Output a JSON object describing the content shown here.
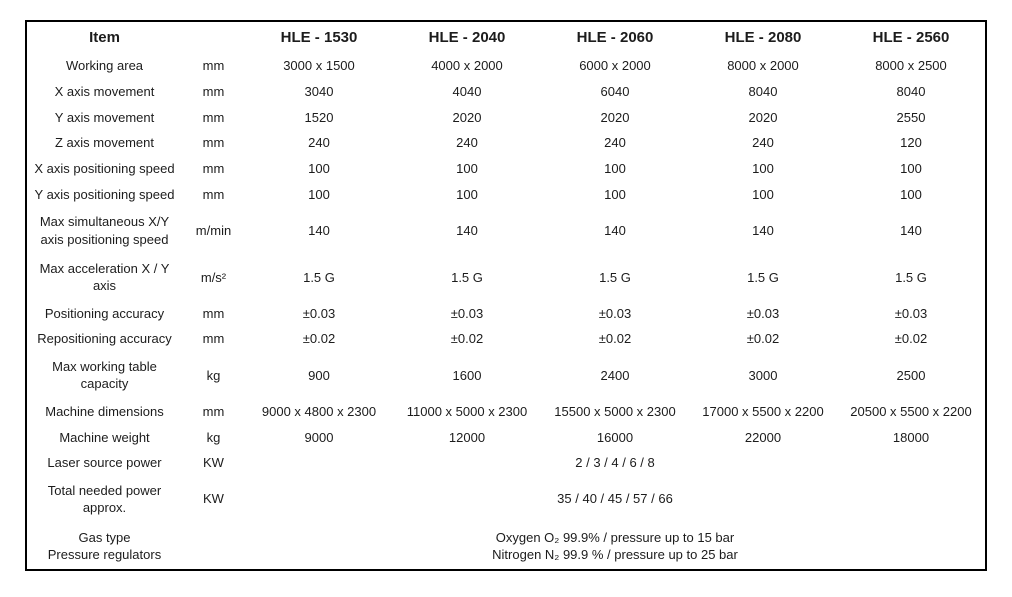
{
  "table": {
    "header_item": "Item",
    "header_unit": "",
    "models": [
      "HLE - 1530",
      "HLE - 2040",
      "HLE - 2060",
      "HLE - 2080",
      "HLE - 2560"
    ],
    "rows": [
      {
        "item": "Working area",
        "unit": "mm",
        "values": [
          "3000 x 1500",
          "4000 x 2000",
          "6000 x 2000",
          "8000 x 2000",
          "8000 x 2500"
        ]
      },
      {
        "item": "X axis movement",
        "unit": "mm",
        "values": [
          "3040",
          "4040",
          "6040",
          "8040",
          "8040"
        ]
      },
      {
        "item": "Y axis movement",
        "unit": "mm",
        "values": [
          "1520",
          "2020",
          "2020",
          "2020",
          "2550"
        ]
      },
      {
        "item": "Z axis movement",
        "unit": "mm",
        "values": [
          "240",
          "240",
          "240",
          "240",
          "120"
        ]
      },
      {
        "item": "X axis positioning speed",
        "unit": "mm",
        "values": [
          "100",
          "100",
          "100",
          "100",
          "100"
        ]
      },
      {
        "item": "Y axis positioning speed",
        "unit": "mm",
        "values": [
          "100",
          "100",
          "100",
          "100",
          "100"
        ]
      },
      {
        "item": "Max simultaneous X/Y axis positioning speed",
        "unit": "m/min",
        "values": [
          "140",
          "140",
          "140",
          "140",
          "140"
        ]
      },
      {
        "item": "Max acceleration X / Y axis",
        "unit": "m/s²",
        "values": [
          "1.5 G",
          "1.5 G",
          "1.5 G",
          "1.5 G",
          "1.5 G"
        ]
      },
      {
        "item": "Positioning accuracy",
        "unit": "mm",
        "values": [
          "±0.03",
          "±0.03",
          "±0.03",
          "±0.03",
          "±0.03"
        ]
      },
      {
        "item": "Repositioning accuracy",
        "unit": "mm",
        "values": [
          "±0.02",
          "±0.02",
          "±0.02",
          "±0.02",
          "±0.02"
        ]
      },
      {
        "item": "Max working table capacity",
        "unit": "kg",
        "values": [
          "900",
          "1600",
          "2400",
          "3000",
          "2500"
        ]
      },
      {
        "item": "Machine dimensions",
        "unit": "mm",
        "values": [
          "9000 x 4800 x 2300",
          "11000 x 5000 x 2300",
          "15500 x 5000 x 2300",
          "17000 x 5500 x 2200",
          "20500 x 5500 x 2200"
        ]
      },
      {
        "item": "Machine weight",
        "unit": "kg",
        "values": [
          "9000",
          "12000",
          "16000",
          "22000",
          "18000"
        ]
      },
      {
        "item": "Laser source power",
        "unit": "KW",
        "span": "2 / 3 / 4 / 6 / 8"
      },
      {
        "item": "Total needed power approx.",
        "unit": "KW",
        "span": "35 / 40 / 45 / 57 / 66"
      },
      {
        "item": "Gas type\nPressure regulators",
        "unit": "",
        "span": "Oxygen O₂ 99.9% / pressure up to 15 bar\nNitrogen N₂ 99.9 % / pressure up to 25 bar"
      }
    ]
  },
  "colors": {
    "text": "#1c1c1c",
    "border": "#000000",
    "background": "#ffffff"
  }
}
